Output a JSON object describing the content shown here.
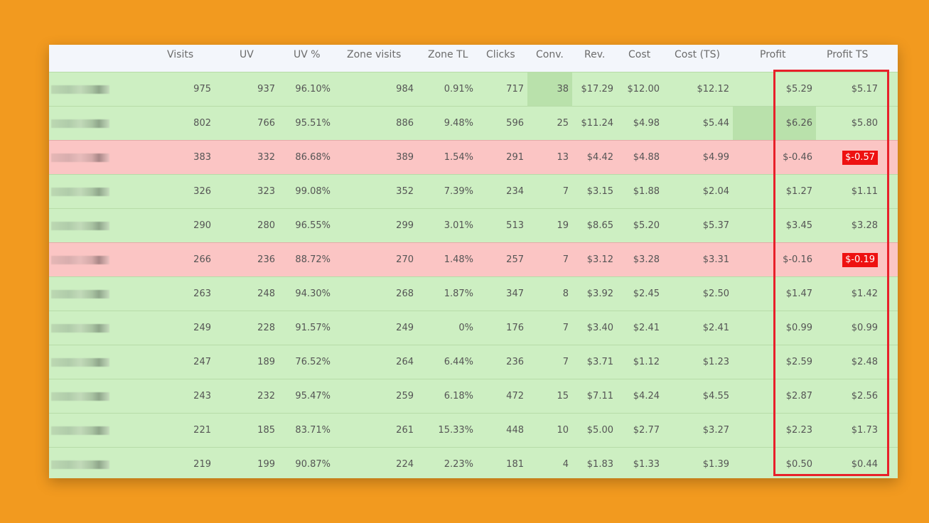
{
  "columns": [
    "Visits",
    "UV",
    "UV %",
    "Zone visits",
    "Zone TL",
    "Clicks",
    "Conv.",
    "Rev.",
    "Cost",
    "Cost (TS)",
    "Profit",
    "Profit TS"
  ],
  "rows": [
    {
      "status": "profit",
      "visits": "975",
      "uv": "937",
      "uv_pct": "96.10%",
      "zone_visits": "984",
      "zone_tl": "0.91%",
      "clicks": "717",
      "conv": "38",
      "rev": "$17.29",
      "cost": "$12.00",
      "cost_ts": "$12.12",
      "profit": "$5.29",
      "profit_ts": "$5.17"
    },
    {
      "status": "profit",
      "visits": "802",
      "uv": "766",
      "uv_pct": "95.51%",
      "zone_visits": "886",
      "zone_tl": "9.48%",
      "clicks": "596",
      "conv": "25",
      "rev": "$11.24",
      "cost": "$4.98",
      "cost_ts": "$5.44",
      "profit": "$6.26",
      "profit_ts": "$5.80"
    },
    {
      "status": "loss",
      "visits": "383",
      "uv": "332",
      "uv_pct": "86.68%",
      "zone_visits": "389",
      "zone_tl": "1.54%",
      "clicks": "291",
      "conv": "13",
      "rev": "$4.42",
      "cost": "$4.88",
      "cost_ts": "$4.99",
      "profit": "$-0.46",
      "profit_ts": "$-0.57"
    },
    {
      "status": "profit",
      "visits": "326",
      "uv": "323",
      "uv_pct": "99.08%",
      "zone_visits": "352",
      "zone_tl": "7.39%",
      "clicks": "234",
      "conv": "7",
      "rev": "$3.15",
      "cost": "$1.88",
      "cost_ts": "$2.04",
      "profit": "$1.27",
      "profit_ts": "$1.11"
    },
    {
      "status": "profit",
      "visits": "290",
      "uv": "280",
      "uv_pct": "96.55%",
      "zone_visits": "299",
      "zone_tl": "3.01%",
      "clicks": "513",
      "conv": "19",
      "rev": "$8.65",
      "cost": "$5.20",
      "cost_ts": "$5.37",
      "profit": "$3.45",
      "profit_ts": "$3.28"
    },
    {
      "status": "loss",
      "visits": "266",
      "uv": "236",
      "uv_pct": "88.72%",
      "zone_visits": "270",
      "zone_tl": "1.48%",
      "clicks": "257",
      "conv": "7",
      "rev": "$3.12",
      "cost": "$3.28",
      "cost_ts": "$3.31",
      "profit": "$-0.16",
      "profit_ts": "$-0.19"
    },
    {
      "status": "profit",
      "visits": "263",
      "uv": "248",
      "uv_pct": "94.30%",
      "zone_visits": "268",
      "zone_tl": "1.87%",
      "clicks": "347",
      "conv": "8",
      "rev": "$3.92",
      "cost": "$2.45",
      "cost_ts": "$2.50",
      "profit": "$1.47",
      "profit_ts": "$1.42"
    },
    {
      "status": "profit",
      "visits": "249",
      "uv": "228",
      "uv_pct": "91.57%",
      "zone_visits": "249",
      "zone_tl": "0%",
      "clicks": "176",
      "conv": "7",
      "rev": "$3.40",
      "cost": "$2.41",
      "cost_ts": "$2.41",
      "profit": "$0.99",
      "profit_ts": "$0.99"
    },
    {
      "status": "profit",
      "visits": "247",
      "uv": "189",
      "uv_pct": "76.52%",
      "zone_visits": "264",
      "zone_tl": "6.44%",
      "clicks": "236",
      "conv": "7",
      "rev": "$3.71",
      "cost": "$1.12",
      "cost_ts": "$1.23",
      "profit": "$2.59",
      "profit_ts": "$2.48"
    },
    {
      "status": "profit",
      "visits": "243",
      "uv": "232",
      "uv_pct": "95.47%",
      "zone_visits": "259",
      "zone_tl": "6.18%",
      "clicks": "472",
      "conv": "15",
      "rev": "$7.11",
      "cost": "$4.24",
      "cost_ts": "$4.55",
      "profit": "$2.87",
      "profit_ts": "$2.56"
    },
    {
      "status": "profit",
      "visits": "221",
      "uv": "185",
      "uv_pct": "83.71%",
      "zone_visits": "261",
      "zone_tl": "15.33%",
      "clicks": "448",
      "conv": "10",
      "rev": "$5.00",
      "cost": "$2.77",
      "cost_ts": "$3.27",
      "profit": "$2.23",
      "profit_ts": "$1.73"
    },
    {
      "status": "profit",
      "visits": "219",
      "uv": "199",
      "uv_pct": "90.87%",
      "zone_visits": "224",
      "zone_tl": "2.23%",
      "clicks": "181",
      "conv": "4",
      "rev": "$1.83",
      "cost": "$1.33",
      "cost_ts": "$1.39",
      "profit": "$0.50",
      "profit_ts": "$0.44"
    }
  ],
  "colors": {
    "background": "#f29a1f",
    "row_profit": "#cdefc2",
    "row_loss": "#fbc5c4",
    "highlight_cell": "#b9e1ab",
    "negative_badge": "#ee1111",
    "outline": "#e8202a"
  }
}
